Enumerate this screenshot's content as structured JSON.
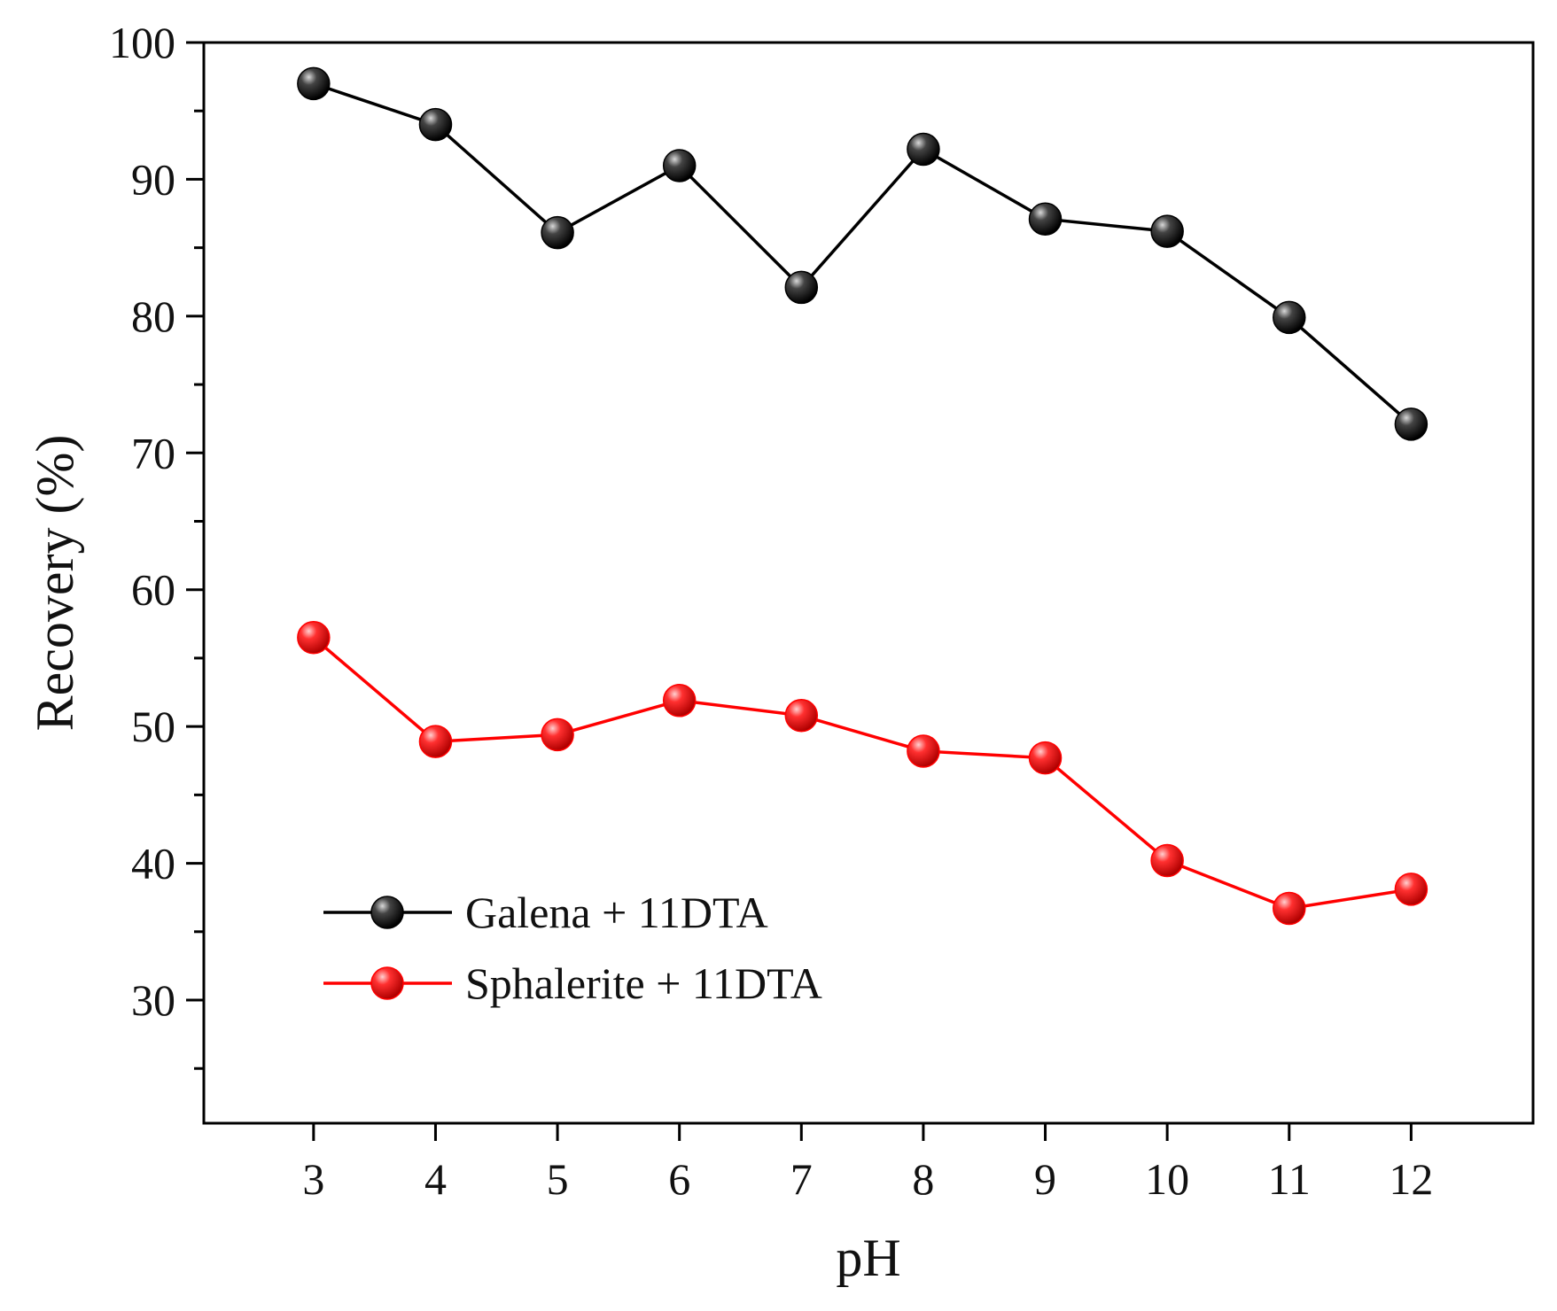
{
  "chart_data": {
    "type": "line",
    "title": "",
    "xlabel": "pH",
    "ylabel": "Recovery (%)",
    "x": [
      3,
      4,
      5,
      6,
      7,
      8,
      9,
      10,
      11,
      12
    ],
    "xlim": [
      2.1,
      13
    ],
    "ylim": [
      21,
      100
    ],
    "xticks": [
      "3",
      "4",
      "5",
      "6",
      "7",
      "8",
      "9",
      "10",
      "11",
      "12"
    ],
    "yticks": [
      "30",
      "40",
      "50",
      "60",
      "70",
      "80",
      "90",
      "100"
    ],
    "grid": false,
    "legend_position": "bottom-left",
    "series": [
      {
        "name": "Galena + 11DTA",
        "color": "#000000",
        "marker_color": "#1a1a1a",
        "values": [
          97.0,
          94.0,
          86.1,
          91.0,
          82.1,
          92.2,
          87.1,
          86.2,
          79.9,
          72.1
        ]
      },
      {
        "name": "Sphalerite + 11DTA",
        "color": "#ff0000",
        "marker_color": "#ee1111",
        "values": [
          56.5,
          48.9,
          49.4,
          51.9,
          50.8,
          48.2,
          47.7,
          40.2,
          36.7,
          38.1
        ]
      }
    ]
  }
}
